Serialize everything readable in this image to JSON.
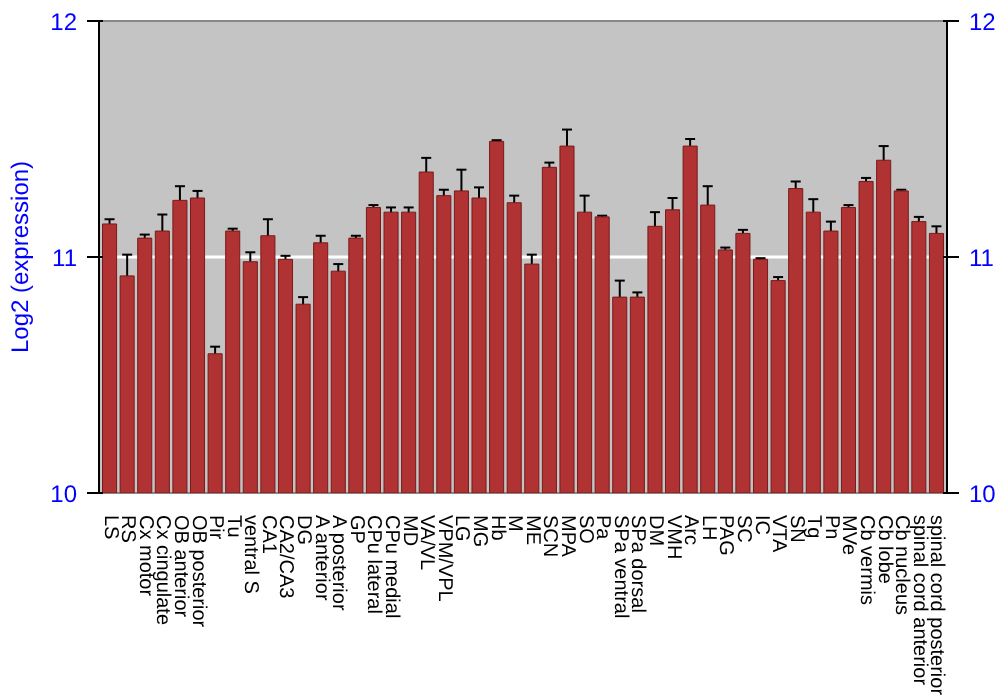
{
  "chart_data": {
    "type": "bar",
    "ylabel": "Log2 (expression)",
    "categories": [
      "LS",
      "RS",
      "Cx motor",
      "Cx cingulate",
      "OB anterior",
      "OB posterior",
      "Pir",
      "Tu",
      "ventral S",
      "CA1",
      "CA2/CA3",
      "DG",
      "A anterior",
      "A posterior",
      "GP",
      "CPu lateral",
      "CPu medial",
      "MD",
      "VA/VL",
      "VPM/VPL",
      "LG",
      "MG",
      "Hb",
      "M",
      "ME",
      "SCN",
      "MPA",
      "SO",
      "Pa",
      "SPa ventral",
      "SPa dorsal",
      "DM",
      "VMH",
      "Arc",
      "LH",
      "PAG",
      "SC",
      "IC",
      "VTA",
      "SN",
      "Tg",
      "Pn",
      "MVe",
      "Cb vermis",
      "Cb lobe",
      "Cb nucleus",
      "spinal cord anterior",
      "spinal cord posterior"
    ],
    "values": [
      11.14,
      10.92,
      11.08,
      11.11,
      11.24,
      11.25,
      10.59,
      11.11,
      10.98,
      11.09,
      10.99,
      10.8,
      11.06,
      10.94,
      11.08,
      11.21,
      11.19,
      11.19,
      11.36,
      11.26,
      11.28,
      11.25,
      11.49,
      11.23,
      10.97,
      11.38,
      11.47,
      11.19,
      11.17,
      10.83,
      10.83,
      11.13,
      11.2,
      11.47,
      11.22,
      11.03,
      11.1,
      10.99,
      10.9,
      11.29,
      11.19,
      11.11,
      11.21,
      11.32,
      11.41,
      11.28,
      11.15,
      11.1
    ],
    "errors": [
      0.02,
      0.09,
      0.015,
      0.07,
      0.06,
      0.03,
      0.03,
      0.01,
      0.04,
      0.07,
      0.015,
      0.03,
      0.03,
      0.03,
      0.01,
      0.01,
      0.02,
      0.02,
      0.06,
      0.025,
      0.09,
      0.045,
      0.005,
      0.03,
      0.04,
      0.02,
      0.07,
      0.07,
      0.005,
      0.07,
      0.02,
      0.06,
      0.05,
      0.03,
      0.08,
      0.01,
      0.015,
      0.005,
      0.015,
      0.03,
      0.055,
      0.04,
      0.01,
      0.015,
      0.06,
      0.005,
      0.02,
      0.03
    ],
    "color": "#b03232",
    "ylim": [
      10,
      12
    ],
    "yticks": [
      10,
      11,
      12
    ],
    "y2lim": [
      10,
      12
    ],
    "y2ticks": [
      10,
      11,
      12
    ],
    "grid": "y"
  }
}
